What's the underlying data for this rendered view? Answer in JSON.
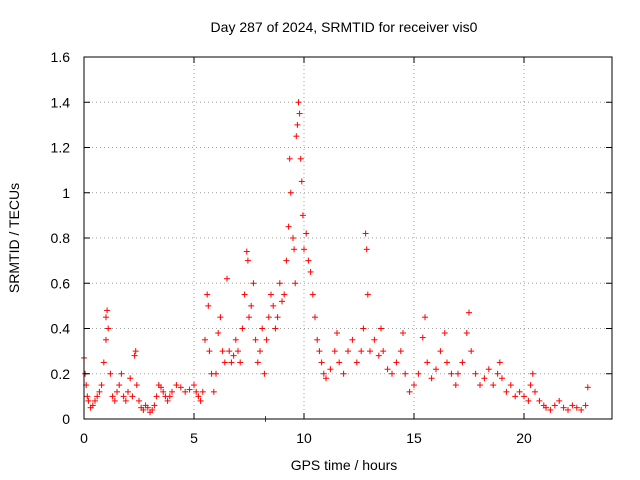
{
  "chart_data": {
    "type": "scatter",
    "title": "Day 287 of 2024, SRMTID for receiver vis0",
    "xlabel": "GPS time / hours",
    "ylabel": "SRMTID / TECUs",
    "xlim": [
      0,
      24
    ],
    "ylim": [
      0,
      1.6
    ],
    "xticks": [
      0,
      5,
      10,
      15,
      20
    ],
    "yticks": [
      0,
      0.2,
      0.4,
      0.6,
      0.8,
      1,
      1.2,
      1.4,
      1.6
    ],
    "xtick_labels": [
      "0",
      "5",
      "10",
      "15",
      "20"
    ],
    "ytick_labels": [
      "0",
      "0.2",
      "0.4",
      "0.6",
      "0.8",
      "1",
      "1.2",
      "1.4",
      "1.6"
    ],
    "grid": true,
    "marker": "+",
    "color": "#ff0000",
    "series": [
      {
        "name": "vis0",
        "points": [
          [
            0.0,
            0.27
          ],
          [
            0.05,
            0.2
          ],
          [
            0.1,
            0.15
          ],
          [
            0.15,
            0.1
          ],
          [
            0.2,
            0.08
          ],
          [
            0.3,
            0.05
          ],
          [
            0.4,
            0.06
          ],
          [
            0.5,
            0.08
          ],
          [
            0.6,
            0.1
          ],
          [
            0.7,
            0.12
          ],
          [
            0.8,
            0.15
          ],
          [
            0.9,
            0.25
          ],
          [
            1.0,
            0.35
          ],
          [
            1.0,
            0.45
          ],
          [
            1.05,
            0.48
          ],
          [
            1.1,
            0.4
          ],
          [
            1.2,
            0.2
          ],
          [
            1.3,
            0.1
          ],
          [
            1.4,
            0.08
          ],
          [
            1.5,
            0.12
          ],
          [
            1.6,
            0.15
          ],
          [
            1.7,
            0.2
          ],
          [
            1.8,
            0.1
          ],
          [
            1.9,
            0.08
          ],
          [
            2.0,
            0.12
          ],
          [
            2.1,
            0.18
          ],
          [
            2.2,
            0.1
          ],
          [
            2.3,
            0.28
          ],
          [
            2.35,
            0.3
          ],
          [
            2.4,
            0.15
          ],
          [
            2.5,
            0.08
          ],
          [
            2.6,
            0.05
          ],
          [
            2.7,
            0.04
          ],
          [
            2.8,
            0.06
          ],
          [
            2.9,
            0.05
          ],
          [
            3.0,
            0.03
          ],
          [
            3.1,
            0.04
          ],
          [
            3.2,
            0.06
          ],
          [
            3.3,
            0.1
          ],
          [
            3.4,
            0.15
          ],
          [
            3.5,
            0.14
          ],
          [
            3.6,
            0.12
          ],
          [
            3.7,
            0.1
          ],
          [
            3.8,
            0.08
          ],
          [
            3.9,
            0.1
          ],
          [
            4.0,
            0.12
          ],
          [
            4.2,
            0.15
          ],
          [
            4.4,
            0.14
          ],
          [
            4.6,
            0.12
          ],
          [
            4.8,
            0.13
          ],
          [
            5.0,
            0.15
          ],
          [
            5.1,
            0.12
          ],
          [
            5.2,
            0.1
          ],
          [
            5.3,
            0.08
          ],
          [
            5.4,
            0.12
          ],
          [
            5.5,
            0.35
          ],
          [
            5.6,
            0.55
          ],
          [
            5.65,
            0.5
          ],
          [
            5.7,
            0.3
          ],
          [
            5.8,
            0.2
          ],
          [
            5.9,
            0.12
          ],
          [
            6.0,
            0.2
          ],
          [
            6.1,
            0.38
          ],
          [
            6.2,
            0.45
          ],
          [
            6.3,
            0.3
          ],
          [
            6.4,
            0.25
          ],
          [
            6.5,
            0.62
          ],
          [
            6.6,
            0.3
          ],
          [
            6.7,
            0.25
          ],
          [
            6.8,
            0.28
          ],
          [
            6.9,
            0.35
          ],
          [
            7.0,
            0.3
          ],
          [
            7.1,
            0.25
          ],
          [
            7.2,
            0.4
          ],
          [
            7.3,
            0.55
          ],
          [
            7.4,
            0.74
          ],
          [
            7.45,
            0.7
          ],
          [
            7.5,
            0.45
          ],
          [
            7.6,
            0.5
          ],
          [
            7.7,
            0.6
          ],
          [
            7.8,
            0.35
          ],
          [
            7.9,
            0.25
          ],
          [
            8.0,
            0.3
          ],
          [
            8.1,
            0.4
          ],
          [
            8.2,
            0.2
          ],
          [
            8.25,
            0.0
          ],
          [
            8.3,
            0.35
          ],
          [
            8.4,
            0.45
          ],
          [
            8.5,
            0.55
          ],
          [
            8.6,
            0.5
          ],
          [
            8.7,
            0.4
          ],
          [
            8.8,
            0.45
          ],
          [
            8.9,
            0.6
          ],
          [
            9.0,
            0.52
          ],
          [
            9.1,
            0.55
          ],
          [
            9.2,
            0.7
          ],
          [
            9.3,
            0.85
          ],
          [
            9.35,
            1.15
          ],
          [
            9.4,
            1.0
          ],
          [
            9.5,
            0.8
          ],
          [
            9.55,
            0.75
          ],
          [
            9.6,
            0.6
          ],
          [
            9.65,
            1.25
          ],
          [
            9.7,
            1.3
          ],
          [
            9.75,
            1.4
          ],
          [
            9.8,
            1.35
          ],
          [
            9.85,
            1.15
          ],
          [
            9.9,
            1.05
          ],
          [
            9.95,
            0.9
          ],
          [
            10.0,
            0.75
          ],
          [
            10.1,
            0.82
          ],
          [
            10.2,
            0.7
          ],
          [
            10.3,
            0.65
          ],
          [
            10.4,
            0.55
          ],
          [
            10.5,
            0.45
          ],
          [
            10.6,
            0.35
          ],
          [
            10.7,
            0.3
          ],
          [
            10.8,
            0.25
          ],
          [
            10.9,
            0.2
          ],
          [
            11.0,
            0.18
          ],
          [
            11.2,
            0.22
          ],
          [
            11.4,
            0.3
          ],
          [
            11.5,
            0.38
          ],
          [
            11.6,
            0.25
          ],
          [
            11.8,
            0.2
          ],
          [
            12.0,
            0.3
          ],
          [
            12.2,
            0.35
          ],
          [
            12.4,
            0.25
          ],
          [
            12.6,
            0.3
          ],
          [
            12.7,
            0.4
          ],
          [
            12.8,
            0.82
          ],
          [
            12.85,
            0.75
          ],
          [
            12.9,
            0.55
          ],
          [
            13.0,
            0.3
          ],
          [
            13.2,
            0.35
          ],
          [
            13.4,
            0.28
          ],
          [
            13.5,
            0.4
          ],
          [
            13.6,
            0.3
          ],
          [
            13.8,
            0.22
          ],
          [
            14.0,
            0.2
          ],
          [
            14.2,
            0.25
          ],
          [
            14.4,
            0.3
          ],
          [
            14.5,
            0.38
          ],
          [
            14.6,
            0.2
          ],
          [
            14.8,
            0.12
          ],
          [
            15.0,
            0.15
          ],
          [
            15.2,
            0.2
          ],
          [
            15.4,
            0.36
          ],
          [
            15.5,
            0.45
          ],
          [
            15.6,
            0.25
          ],
          [
            15.8,
            0.18
          ],
          [
            16.0,
            0.22
          ],
          [
            16.2,
            0.3
          ],
          [
            16.4,
            0.38
          ],
          [
            16.5,
            0.25
          ],
          [
            16.7,
            0.2
          ],
          [
            16.9,
            0.15
          ],
          [
            17.0,
            0.2
          ],
          [
            17.2,
            0.25
          ],
          [
            17.4,
            0.38
          ],
          [
            17.5,
            0.47
          ],
          [
            17.6,
            0.3
          ],
          [
            17.8,
            0.2
          ],
          [
            18.0,
            0.15
          ],
          [
            18.2,
            0.18
          ],
          [
            18.4,
            0.22
          ],
          [
            18.6,
            0.15
          ],
          [
            18.8,
            0.2
          ],
          [
            18.9,
            0.25
          ],
          [
            19.0,
            0.18
          ],
          [
            19.2,
            0.12
          ],
          [
            19.4,
            0.15
          ],
          [
            19.6,
            0.1
          ],
          [
            19.8,
            0.12
          ],
          [
            20.0,
            0.1
          ],
          [
            20.2,
            0.08
          ],
          [
            20.3,
            0.15
          ],
          [
            20.4,
            0.2
          ],
          [
            20.5,
            0.12
          ],
          [
            20.7,
            0.08
          ],
          [
            20.9,
            0.06
          ],
          [
            21.0,
            0.05
          ],
          [
            21.2,
            0.04
          ],
          [
            21.4,
            0.06
          ],
          [
            21.6,
            0.08
          ],
          [
            21.8,
            0.05
          ],
          [
            22.0,
            0.04
          ],
          [
            22.2,
            0.06
          ],
          [
            22.4,
            0.05
          ],
          [
            22.6,
            0.04
          ],
          [
            22.8,
            0.06
          ],
          [
            22.9,
            0.14
          ]
        ]
      }
    ]
  }
}
